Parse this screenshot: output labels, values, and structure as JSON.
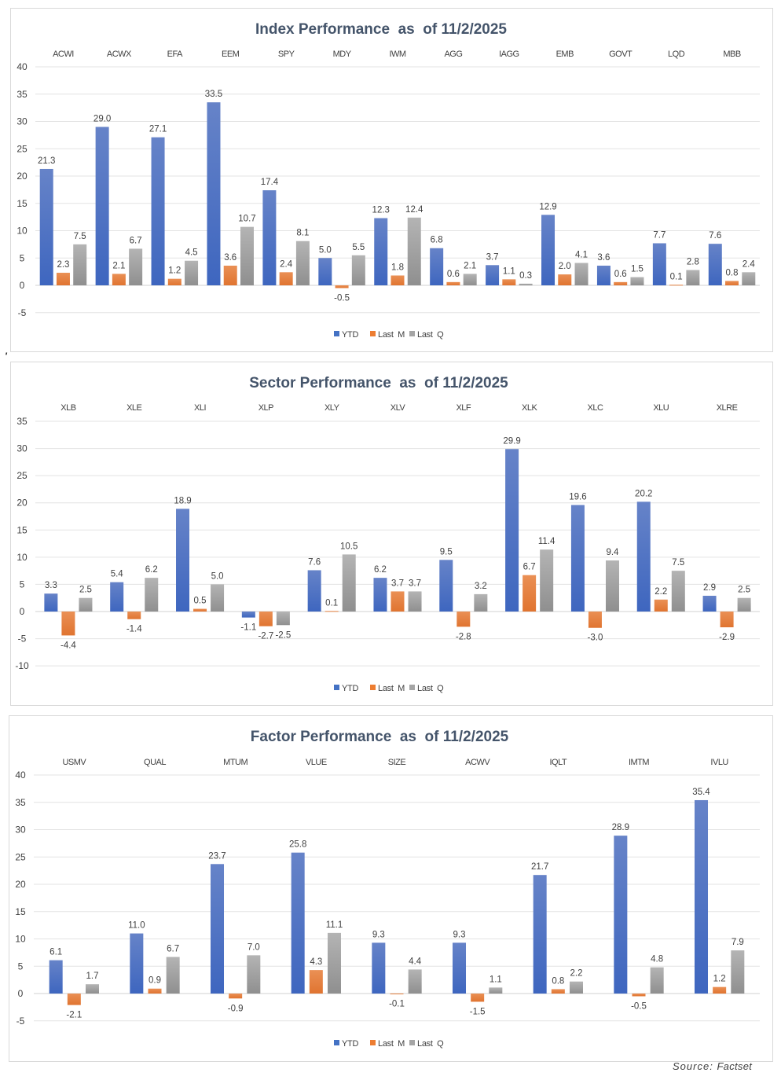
{
  "colors": {
    "ytd": "#4472c4",
    "last_m": "#ed7d31",
    "last_q": "#a5a5a5"
  },
  "source": {
    "prefix": "Source:",
    "name": "Factset"
  },
  "stray_mark": "'",
  "chart_data": [
    {
      "type": "bar",
      "title": "Index Performance  as  of 11/2/2025",
      "categories": [
        "ACWI",
        "ACWX",
        "EFA",
        "EEM",
        "SPY",
        "MDY",
        "IWM",
        "AGG",
        "IAGG",
        "EMB",
        "GOVT",
        "LQD",
        "MBB"
      ],
      "series": [
        {
          "name": "YTD",
          "values": [
            21.3,
            29.0,
            27.1,
            33.5,
            17.4,
            5.0,
            12.3,
            6.8,
            3.7,
            12.9,
            3.6,
            7.7,
            7.6
          ],
          "labels": [
            "21.3",
            "29.0",
            "27.1",
            "33.5",
            "17.4",
            "5.0",
            "12.3",
            "6.8",
            "3.7",
            "12.9",
            "3.6",
            "7.7",
            "7.6"
          ]
        },
        {
          "name": "Last  M",
          "values": [
            2.3,
            2.1,
            1.2,
            3.6,
            2.4,
            -0.5,
            1.8,
            0.6,
            1.1,
            2.0,
            0.6,
            0.1,
            0.8
          ],
          "labels": [
            "2.3",
            "2.1",
            "1.2",
            "3.6",
            "2.4",
            "-0.5",
            "1.8",
            "0.6",
            "1.1",
            "2.0",
            "0.6",
            "0.1",
            "0.8"
          ]
        },
        {
          "name": "Last  Q",
          "values": [
            7.5,
            6.7,
            4.5,
            10.7,
            8.1,
            5.5,
            12.4,
            2.1,
            0.3,
            4.1,
            1.5,
            2.8,
            2.4
          ],
          "labels": [
            "7.5",
            "6.7",
            "4.5",
            "10.7",
            "8.1",
            "5.5",
            "12.4",
            "2.1",
            "0.3",
            "4.1",
            "1.5",
            "2.8",
            "2.4"
          ]
        }
      ],
      "ylim": [
        -5,
        40
      ],
      "yticks": [
        40,
        35,
        30,
        25,
        20,
        15,
        10,
        5,
        0,
        -5
      ],
      "grid": true,
      "legend": "bottom",
      "xaxis_position": "top"
    },
    {
      "type": "bar",
      "title": "Sector Performance  as  of 11/2/2025",
      "categories": [
        "XLB",
        "XLE",
        "XLI",
        "XLP",
        "XLY",
        "XLV",
        "XLF",
        "XLK",
        "XLC",
        "XLU",
        "XLRE"
      ],
      "series": [
        {
          "name": "YTD",
          "values": [
            3.3,
            5.4,
            18.9,
            -1.1,
            7.6,
            6.2,
            9.5,
            29.9,
            19.6,
            20.2,
            2.9
          ],
          "labels": [
            "3.3",
            "5.4",
            "18.9",
            "-1.1",
            "7.6",
            "6.2",
            "9.5",
            "29.9",
            "19.6",
            "20.2",
            "2.9"
          ]
        },
        {
          "name": "Last  M",
          "values": [
            -4.4,
            -1.4,
            0.5,
            -2.7,
            0.1,
            3.7,
            -2.8,
            6.7,
            -3.0,
            2.2,
            -2.9
          ],
          "labels": [
            "-4.4",
            "-1.4",
            "0.5",
            "-2.7",
            "0.1",
            "3.7",
            "-2.8",
            "6.7",
            "-3.0",
            "2.2",
            "-2.9"
          ]
        },
        {
          "name": "Last  Q",
          "values": [
            2.5,
            6.2,
            5.0,
            -2.5,
            10.5,
            3.7,
            3.2,
            11.4,
            9.4,
            7.5,
            2.5
          ],
          "labels": [
            "2.5",
            "6.2",
            "5.0",
            "-2.5",
            "10.5",
            "3.7",
            "3.2",
            "11.4",
            "9.4",
            "7.5",
            "2.5"
          ]
        }
      ],
      "ylim": [
        -10,
        35
      ],
      "yticks": [
        35,
        30,
        25,
        20,
        15,
        10,
        5,
        0,
        -5,
        -10
      ],
      "grid": true,
      "legend": "bottom",
      "xaxis_position": "top"
    },
    {
      "type": "bar",
      "title": "Factor Performance  as  of 11/2/2025",
      "categories": [
        "USMV",
        "QUAL",
        "MTUM",
        "VLUE",
        "SIZE",
        "ACWV",
        "IQLT",
        "IMTM",
        "IVLU"
      ],
      "series": [
        {
          "name": "YTD",
          "values": [
            6.1,
            11.0,
            23.7,
            25.8,
            9.3,
            9.3,
            21.7,
            28.9,
            35.4
          ],
          "labels": [
            "6.1",
            "11.0",
            "23.7",
            "25.8",
            "9.3",
            "9.3",
            "21.7",
            "28.9",
            "35.4"
          ]
        },
        {
          "name": "Last  M",
          "values": [
            -2.1,
            0.9,
            -0.9,
            4.3,
            -0.1,
            -1.5,
            0.8,
            -0.5,
            1.2
          ],
          "labels": [
            "-2.1",
            "0.9",
            "-0.9",
            "4.3",
            "-0.1",
            "-1.5",
            "0.8",
            "-0.5",
            "1.2"
          ]
        },
        {
          "name": "Last  Q",
          "values": [
            1.7,
            6.7,
            7.0,
            11.1,
            4.4,
            1.1,
            2.2,
            4.8,
            7.9
          ],
          "labels": [
            "1.7",
            "6.7",
            "7.0",
            "11.1",
            "4.4",
            "1.1",
            "2.2",
            "4.8",
            "7.9"
          ]
        }
      ],
      "ylim": [
        -5,
        40
      ],
      "yticks": [
        40,
        35,
        30,
        25,
        20,
        15,
        10,
        5,
        0,
        -5
      ],
      "grid": true,
      "legend": "bottom",
      "xaxis_position": "top"
    }
  ]
}
